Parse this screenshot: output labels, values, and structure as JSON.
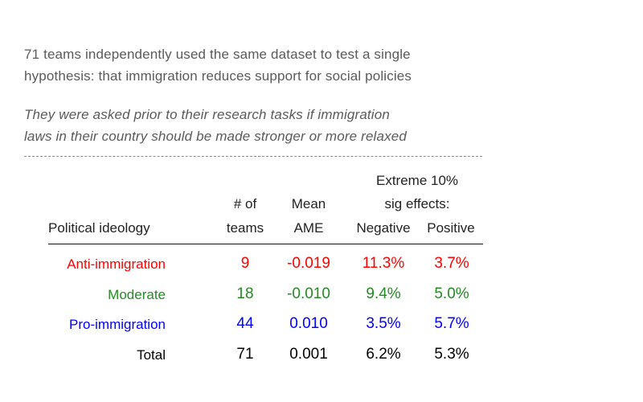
{
  "intro": {
    "line1": "71 teams independently used the same dataset to test a single",
    "line2": "hypothesis: that immigration reduces support for social policies"
  },
  "question": {
    "line1": "They were asked prior to their research tasks if immigration",
    "line2": "laws in their country should be made stronger or more relaxed"
  },
  "chart_data": {
    "type": "table",
    "headers": {
      "ideology": "Political ideology",
      "teams_line1": "# of",
      "teams_line2": "teams",
      "ame_line1": "Mean",
      "ame_line2": "AME",
      "extreme_line1": "Extreme 10%",
      "extreme_line2": "sig effects:",
      "negative": "Negative",
      "positive": "Positive"
    },
    "rows": [
      {
        "label": "Anti-immigration",
        "teams": "9",
        "mean_ame": "-0.019",
        "negative": "11.3%",
        "positive": "3.7%",
        "color": "#ff0000"
      },
      {
        "label": "Moderate",
        "teams": "18",
        "mean_ame": "-0.010",
        "negative": "9.4%",
        "positive": "5.0%",
        "color": "#228b22"
      },
      {
        "label": "Pro-immigration",
        "teams": "44",
        "mean_ame": "0.010",
        "negative": "3.5%",
        "positive": "5.7%",
        "color": "#0000ff"
      },
      {
        "label": "Total",
        "teams": "71",
        "mean_ame": "0.001",
        "negative": "6.2%",
        "positive": "5.3%",
        "color": "#000000"
      }
    ]
  }
}
